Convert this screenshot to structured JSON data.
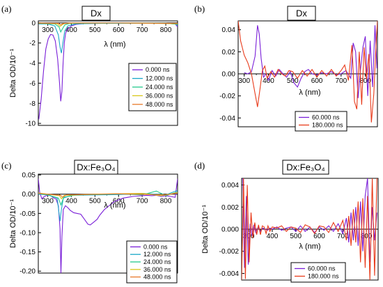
{
  "chart_data": [
    {
      "panel": "(a)",
      "type": "line",
      "title": "Dx",
      "xlabel": "λ (nm)",
      "ylabel": "Delta OD/10⁻¹",
      "xlim": [
        260,
        850
      ],
      "ylim": [
        -10.2,
        0.2
      ],
      "xticks": [
        300,
        400,
        500,
        600,
        700,
        800
      ],
      "yticks": [
        0,
        -2,
        -4,
        -6,
        -8,
        -10
      ],
      "ytick_labels": [
        "0",
        "-2",
        "-4",
        "-6",
        "-8",
        "-10"
      ],
      "legend": {
        "position": "right-center",
        "labels": [
          "0.000 ns",
          "12.000 ns",
          "24.000 ns",
          "36.000 ns",
          "48.000 ns"
        ]
      },
      "series": [
        {
          "name": "0.000 ns",
          "color": "#7a1fd8",
          "x": [
            262,
            272,
            282,
            292,
            302,
            312,
            322,
            332,
            342,
            350,
            355,
            360,
            365,
            370,
            376,
            385,
            400,
            420,
            450,
            500,
            560,
            620,
            680,
            740,
            800,
            840,
            850
          ],
          "y": [
            -9.6,
            -7.6,
            -4.8,
            -2.6,
            -1.6,
            -1.15,
            -1.2,
            -1.8,
            -3.6,
            -6.0,
            -7.8,
            -6.8,
            -4.0,
            -2.0,
            -1.0,
            -0.6,
            -0.3,
            -0.15,
            -0.08,
            -0.05,
            -0.03,
            -0.03,
            -0.03,
            -0.03,
            -0.05,
            -0.1,
            -0.4
          ]
        },
        {
          "name": "12.000 ns",
          "color": "#1aa8c8",
          "x": [
            262,
            300,
            330,
            345,
            352,
            358,
            364,
            372,
            385,
            420,
            500,
            600,
            700,
            800,
            845,
            850
          ],
          "y": [
            -0.1,
            -0.1,
            -0.3,
            -1.2,
            -2.4,
            -3.0,
            -2.0,
            -0.8,
            -0.3,
            -0.1,
            -0.05,
            -0.04,
            -0.03,
            -0.05,
            -0.1,
            -0.3
          ]
        },
        {
          "name": "24.000 ns",
          "color": "#22c88c",
          "x": [
            262,
            330,
            348,
            355,
            362,
            372,
            390,
            450,
            600,
            800,
            850
          ],
          "y": [
            -0.05,
            -0.1,
            -0.4,
            -0.9,
            -0.6,
            -0.2,
            -0.06,
            -0.03,
            -0.02,
            -0.03,
            -0.15
          ]
        },
        {
          "name": "36.000 ns",
          "color": "#d8c81a",
          "x": [
            262,
            340,
            352,
            360,
            370,
            400,
            600,
            850
          ],
          "y": [
            -0.03,
            -0.08,
            -0.35,
            -0.2,
            -0.06,
            -0.02,
            -0.01,
            -0.08
          ]
        },
        {
          "name": "48.000 ns",
          "color": "#e87a2a",
          "x": [
            262,
            345,
            355,
            365,
            400,
            600,
            850
          ],
          "y": [
            -0.02,
            -0.05,
            -0.2,
            -0.06,
            -0.01,
            -0.01,
            -0.05
          ]
        }
      ]
    },
    {
      "panel": "(b)",
      "type": "line",
      "title": "Dx",
      "xlabel": "λ (nm)",
      "ylabel": "",
      "xlim": [
        275,
        850
      ],
      "ylim": [
        -0.048,
        0.048
      ],
      "xticks": [
        300,
        400,
        500,
        600,
        700,
        800
      ],
      "yticks": [
        0.04,
        0.02,
        0.0,
        -0.02,
        -0.04
      ],
      "ytick_labels": [
        "0.04",
        "0.02",
        "0.00",
        "-0.02",
        "-0.04"
      ],
      "legend": {
        "position": "bottom-center",
        "labels": [
          "60.000 ns",
          "180.000 ns"
        ]
      },
      "series": [
        {
          "name": "60.000 ns",
          "color": "#7a1fd8",
          "x": [
            300,
            315,
            330,
            345,
            355,
            362,
            370,
            380,
            390,
            400,
            415,
            430,
            445,
            460,
            475,
            490,
            505,
            520,
            535,
            550,
            565,
            580,
            600,
            620,
            640,
            660,
            680,
            700,
            720,
            740,
            750,
            760,
            770,
            780,
            790,
            800,
            810,
            820,
            830,
            840,
            848
          ],
          "y": [
            0.001,
            0.0,
            0.002,
            0.016,
            0.044,
            0.036,
            0.014,
            -0.003,
            0.0,
            -0.006,
            0.003,
            -0.002,
            0.004,
            0.0,
            -0.003,
            0.002,
            -0.008,
            -0.012,
            -0.004,
            0.002,
            0.004,
            0.0,
            -0.001,
            0.001,
            0.0,
            0.002,
            -0.001,
            0.0,
            0.003,
            -0.004,
            0.028,
            0.02,
            -0.022,
            0.004,
            0.024,
            0.034,
            -0.02,
            0.03,
            -0.012,
            0.044,
            0.005
          ]
        },
        {
          "name": "180.000 ns",
          "color": "#e83a1a",
          "x": [
            275,
            285,
            300,
            315,
            330,
            345,
            355,
            365,
            375,
            385,
            395,
            410,
            425,
            440,
            455,
            470,
            485,
            500,
            520,
            540,
            560,
            580,
            600,
            620,
            640,
            660,
            680,
            700,
            715,
            730,
            745,
            755,
            765,
            775,
            785,
            795,
            805,
            815,
            825,
            835,
            845,
            850
          ],
          "y": [
            0.048,
            0.03,
            0.017,
            0.01,
            0.0,
            -0.018,
            -0.03,
            -0.014,
            0.003,
            0.007,
            -0.004,
            0.002,
            -0.003,
            0.004,
            0.0,
            -0.002,
            0.003,
            0.002,
            -0.004,
            0.003,
            -0.002,
            0.004,
            -0.003,
            0.003,
            -0.002,
            0.004,
            -0.002,
            0.003,
            0.008,
            -0.006,
            0.026,
            -0.025,
            -0.032,
            0.02,
            -0.028,
            0.024,
            -0.005,
            0.018,
            -0.044,
            -0.018,
            0.03,
            0.048
          ]
        }
      ]
    },
    {
      "panel": "(c)",
      "type": "line",
      "title": "Dx:Fe₃O₄",
      "xlabel": "λ (nm)",
      "ylabel": "Delta OD/10⁻¹",
      "xlim": [
        260,
        850
      ],
      "ylim": [
        -0.205,
        0.052
      ],
      "xticks": [
        300,
        400,
        500,
        600,
        700,
        800
      ],
      "yticks": [
        0.05,
        0.0,
        -0.05,
        -0.1,
        -0.15,
        -0.2
      ],
      "ytick_labels": [
        "0.05",
        "0.00",
        "-0.05",
        "-0.10",
        "-0.15",
        "-0.20"
      ],
      "legend": {
        "position": "bottom-right",
        "labels": [
          "0.000 ns",
          "12.000 ns",
          "24.000 ns",
          "36.000 ns",
          "48.000 ns"
        ]
      },
      "series": [
        {
          "name": "0.000 ns",
          "color": "#7a1fd8",
          "x": [
            260,
            266,
            275,
            285,
            295,
            305,
            315,
            325,
            335,
            345,
            352,
            356,
            360,
            366,
            375,
            385,
            395,
            410,
            425,
            440,
            455,
            470,
            480,
            490,
            500,
            510,
            520,
            540,
            560,
            580,
            600,
            620,
            640,
            660,
            680,
            700,
            720,
            740,
            760,
            780,
            800,
            820,
            840,
            850
          ],
          "y": [
            0.04,
            0.005,
            -0.012,
            -0.006,
            -0.004,
            -0.002,
            -0.005,
            -0.01,
            -0.012,
            -0.03,
            -0.09,
            -0.205,
            -0.11,
            -0.04,
            -0.03,
            -0.035,
            -0.042,
            -0.048,
            -0.05,
            -0.052,
            -0.065,
            -0.078,
            -0.08,
            -0.075,
            -0.07,
            -0.065,
            -0.055,
            -0.04,
            -0.03,
            -0.02,
            -0.015,
            -0.01,
            -0.008,
            -0.006,
            -0.005,
            -0.004,
            -0.003,
            -0.004,
            -0.003,
            -0.006,
            -0.004,
            -0.006,
            -0.008,
            0.04
          ]
        },
        {
          "name": "12.000 ns",
          "color": "#1aa8c8",
          "x": [
            260,
            300,
            340,
            352,
            358,
            366,
            400,
            500,
            600,
            700,
            800,
            850
          ],
          "y": [
            0.0,
            -0.002,
            -0.01,
            -0.07,
            -0.04,
            -0.01,
            -0.003,
            -0.002,
            -0.001,
            0.002,
            -0.002,
            0.01
          ]
        },
        {
          "name": "24.000 ns",
          "color": "#22c88c",
          "x": [
            260,
            300,
            345,
            356,
            368,
            420,
            600,
            700,
            760,
            800,
            850
          ],
          "y": [
            0.002,
            -0.002,
            -0.01,
            -0.028,
            -0.008,
            -0.002,
            0.001,
            -0.002,
            0.008,
            -0.004,
            0.006
          ]
        },
        {
          "name": "36.000 ns",
          "color": "#d8c81a",
          "x": [
            260,
            350,
            358,
            370,
            500,
            700,
            780,
            850
          ],
          "y": [
            0.003,
            -0.004,
            -0.012,
            -0.003,
            0.0,
            0.002,
            -0.004,
            0.004
          ]
        },
        {
          "name": "48.000 ns",
          "color": "#e87a2a",
          "x": [
            260,
            355,
            362,
            380,
            600,
            800,
            850
          ],
          "y": [
            0.002,
            -0.003,
            -0.008,
            -0.002,
            0.001,
            -0.002,
            0.003
          ]
        }
      ]
    },
    {
      "panel": "(d)",
      "type": "line",
      "title": "Dx:Fe₃O₄",
      "xlabel": "λ (nm)",
      "ylabel": "Delta OD/10⁻¹",
      "xlim": [
        270,
        850
      ],
      "ylim": [
        -0.0046,
        0.0046
      ],
      "xticks": [
        300,
        400,
        500,
        600,
        700,
        800
      ],
      "yticks": [
        0.004,
        0.002,
        0.0,
        -0.002,
        -0.004
      ],
      "ytick_labels": [
        "0.004",
        "0.002",
        "0.000",
        "-0.002",
        "-0.004"
      ],
      "legend": {
        "position": "bottom-center",
        "labels": [
          "60.000 ns",
          "180.000 ns"
        ]
      },
      "series": [
        {
          "name": "60.000 ns",
          "color": "#7a1fd8",
          "x": [
            275,
            282,
            290,
            298,
            306,
            314,
            322,
            330,
            340,
            350,
            360,
            370,
            380,
            390,
            400,
            420,
            440,
            460,
            480,
            500,
            520,
            540,
            560,
            580,
            600,
            620,
            640,
            660,
            680,
            700,
            715,
            725,
            735,
            745,
            755,
            765,
            775,
            785,
            795,
            805,
            815,
            825,
            835,
            845
          ],
          "y": [
            0.0046,
            -0.0035,
            0.003,
            -0.0032,
            0.0005,
            -0.0006,
            0.0004,
            -0.0003,
            0.0002,
            -0.0002,
            0.0001,
            0.0,
            -0.0001,
            0.0001,
            0.0,
            0.0002,
            -0.0001,
            0.0001,
            0.0002,
            -0.0002,
            0.0003,
            -0.0002,
            0.0002,
            -0.0003,
            0.0002,
            -0.0001,
            0.0003,
            -0.0002,
            0.0005,
            -0.0004,
            0.001,
            -0.0012,
            0.0015,
            -0.001,
            0.002,
            -0.0015,
            0.0025,
            -0.002,
            0.003,
            0.0046,
            -0.003,
            0.002,
            -0.001,
            0.0015
          ]
        },
        {
          "name": "180.000 ns",
          "color": "#e83a1a",
          "x": [
            270,
            278,
            286,
            294,
            302,
            310,
            318,
            326,
            334,
            342,
            350,
            358,
            366,
            374,
            382,
            390,
            400,
            420,
            440,
            460,
            480,
            500,
            520,
            540,
            560,
            580,
            600,
            620,
            640,
            660,
            680,
            700,
            715,
            725,
            735,
            745,
            755,
            765,
            775,
            785,
            795,
            805,
            815,
            825,
            835,
            845
          ],
          "y": [
            -0.0046,
            0.0046,
            -0.0045,
            0.004,
            -0.003,
            0.0015,
            -0.0008,
            0.0006,
            -0.0005,
            0.0004,
            -0.0005,
            0.0003,
            0.0002,
            -0.0004,
            0.0003,
            -0.0002,
            0.0002,
            0.0001,
            0.0003,
            -0.0002,
            0.0002,
            0.0001,
            -0.0003,
            0.0004,
            0.0002,
            -0.0004,
            0.0003,
            0.0002,
            -0.0003,
            0.0006,
            -0.0002,
            0.0008,
            -0.001,
            0.0012,
            -0.0015,
            0.0018,
            -0.0012,
            0.0025,
            -0.003,
            0.0028,
            -0.0035,
            0.003,
            -0.0046,
            0.0046,
            -0.0042,
            0.0046
          ]
        }
      ]
    }
  ]
}
